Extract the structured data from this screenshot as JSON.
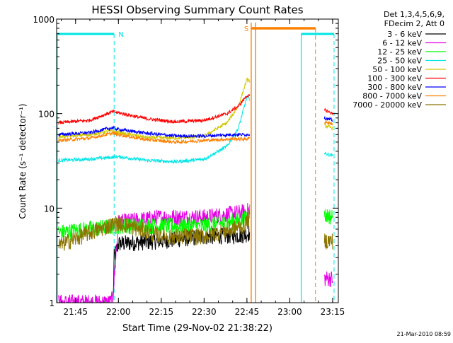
{
  "chart_data": {
    "type": "line",
    "title": "HESSI Observing Summary Count Rates",
    "xlabel": "Start Time (29-Nov-02 21:38:22)",
    "ylabel": "Count Rate (s⁻¹ detector⁻¹)",
    "yscale": "log",
    "ylim": [
      1,
      1000
    ],
    "xlim": [
      "21:38:22",
      "23:17:00"
    ],
    "x_ticks": [
      "21:45",
      "22:00",
      "22:15",
      "22:30",
      "22:45",
      "23:00",
      "23:15"
    ],
    "y_ticks": [
      "1",
      "10",
      "100",
      "1000"
    ],
    "grid": false,
    "legend_position": "right",
    "legend_header": [
      "Det 1,3,4,5,6,9,",
      "FDecim 2, Att 0"
    ],
    "footer": "21-Mar-2010 08:59",
    "annotations": [
      {
        "text": "N",
        "color": "#00e5e5"
      },
      {
        "text": "S",
        "color": "#ff8000"
      }
    ],
    "bands": [
      {
        "name": "night",
        "color": "#00e5e5",
        "intervals": [
          [
            "21:38:22",
            "21:58:30"
          ],
          [
            "23:04:00",
            "23:15:30"
          ]
        ]
      },
      {
        "name": "SAA",
        "color": "#ff8000",
        "intervals": [
          [
            "22:46:30",
            "23:09:00"
          ]
        ]
      }
    ],
    "series": [
      {
        "name": "3 - 6 keV",
        "color": "#000000",
        "points": [
          [
            "21:58:10",
            1.1
          ],
          [
            "21:58:30",
            3.0
          ],
          [
            "22:00",
            4.2
          ],
          [
            "22:15",
            4.5
          ],
          [
            "22:30",
            5.0
          ],
          [
            "22:44",
            5.2
          ],
          [
            "22:46",
            5.5
          ]
        ]
      },
      {
        "name": "6 - 12 keV",
        "color": "#e600e6",
        "points": [
          [
            "21:39",
            1.0
          ],
          [
            "21:57",
            1.0
          ],
          [
            "21:58",
            1.1
          ],
          [
            "22:00",
            7.0
          ],
          [
            "22:15",
            8.0
          ],
          [
            "22:30",
            8.0
          ],
          [
            "22:44",
            9.0
          ],
          [
            "22:46",
            9.5
          ],
          [
            "23:12",
            1.8
          ],
          [
            "23:15",
            1.8
          ]
        ]
      },
      {
        "name": "12 - 25 keV",
        "color": "#00ff00",
        "points": [
          [
            "21:39",
            5.5
          ],
          [
            "21:50",
            6.0
          ],
          [
            "22:00",
            6.5
          ],
          [
            "22:15",
            6.5
          ],
          [
            "22:30",
            6.5
          ],
          [
            "22:44",
            7.5
          ],
          [
            "22:46",
            9.5
          ],
          [
            "23:12",
            8.5
          ],
          [
            "23:15",
            8.0
          ]
        ]
      },
      {
        "name": "25 - 50 keV",
        "color": "#00e5e5",
        "points": [
          [
            "21:39",
            32
          ],
          [
            "21:50",
            33
          ],
          [
            "22:00",
            35
          ],
          [
            "22:10",
            32
          ],
          [
            "22:20",
            31
          ],
          [
            "22:30",
            33
          ],
          [
            "22:38",
            45
          ],
          [
            "22:42",
            70
          ],
          [
            "22:45",
            150
          ],
          [
            "23:12",
            38
          ],
          [
            "23:15",
            36
          ]
        ]
      },
      {
        "name": "50 - 100 keV",
        "color": "#d2c800",
        "points": [
          [
            "21:39",
            57
          ],
          [
            "21:50",
            60
          ],
          [
            "21:58",
            66
          ],
          [
            "22:00",
            63
          ],
          [
            "22:10",
            56
          ],
          [
            "22:20",
            55
          ],
          [
            "22:30",
            58
          ],
          [
            "22:38",
            80
          ],
          [
            "22:42",
            120
          ],
          [
            "22:45",
            230
          ],
          [
            "23:12",
            75
          ],
          [
            "23:15",
            70
          ]
        ]
      },
      {
        "name": "100 - 300 keV",
        "color": "#ff0000",
        "points": [
          [
            "21:39",
            80
          ],
          [
            "21:50",
            85
          ],
          [
            "21:58",
            105
          ],
          [
            "22:00",
            102
          ],
          [
            "22:10",
            88
          ],
          [
            "22:20",
            82
          ],
          [
            "22:30",
            85
          ],
          [
            "22:38",
            100
          ],
          [
            "22:42",
            120
          ],
          [
            "22:45",
            155
          ],
          [
            "23:12",
            110
          ],
          [
            "23:15",
            100
          ]
        ]
      },
      {
        "name": "300 - 800 keV",
        "color": "#0000ff",
        "points": [
          [
            "21:39",
            60
          ],
          [
            "21:50",
            63
          ],
          [
            "21:58",
            71
          ],
          [
            "22:00",
            68
          ],
          [
            "22:10",
            62
          ],
          [
            "22:20",
            58
          ],
          [
            "22:30",
            58
          ],
          [
            "22:40",
            60
          ],
          [
            "22:45",
            60
          ],
          [
            "23:12",
            90
          ],
          [
            "23:15",
            85
          ]
        ]
      },
      {
        "name": "800 - 7000 keV",
        "color": "#ff8000",
        "points": [
          [
            "21:39",
            52
          ],
          [
            "21:50",
            55
          ],
          [
            "21:58",
            62
          ],
          [
            "22:00",
            60
          ],
          [
            "22:10",
            53
          ],
          [
            "22:20",
            50
          ],
          [
            "22:30",
            52
          ],
          [
            "22:40",
            54
          ],
          [
            "22:45",
            54
          ],
          [
            "23:12",
            82
          ],
          [
            "23:15",
            78
          ]
        ]
      },
      {
        "name": "7000 - 20000 keV",
        "color": "#8b7500",
        "points": [
          [
            "21:39",
            4.0
          ],
          [
            "21:50",
            5.5
          ],
          [
            "22:00",
            7.0
          ],
          [
            "22:15",
            5.0
          ],
          [
            "22:30",
            5.0
          ],
          [
            "22:44",
            6.5
          ],
          [
            "22:46",
            8.0
          ],
          [
            "23:12",
            4.5
          ],
          [
            "23:15",
            4.5
          ]
        ]
      }
    ]
  }
}
